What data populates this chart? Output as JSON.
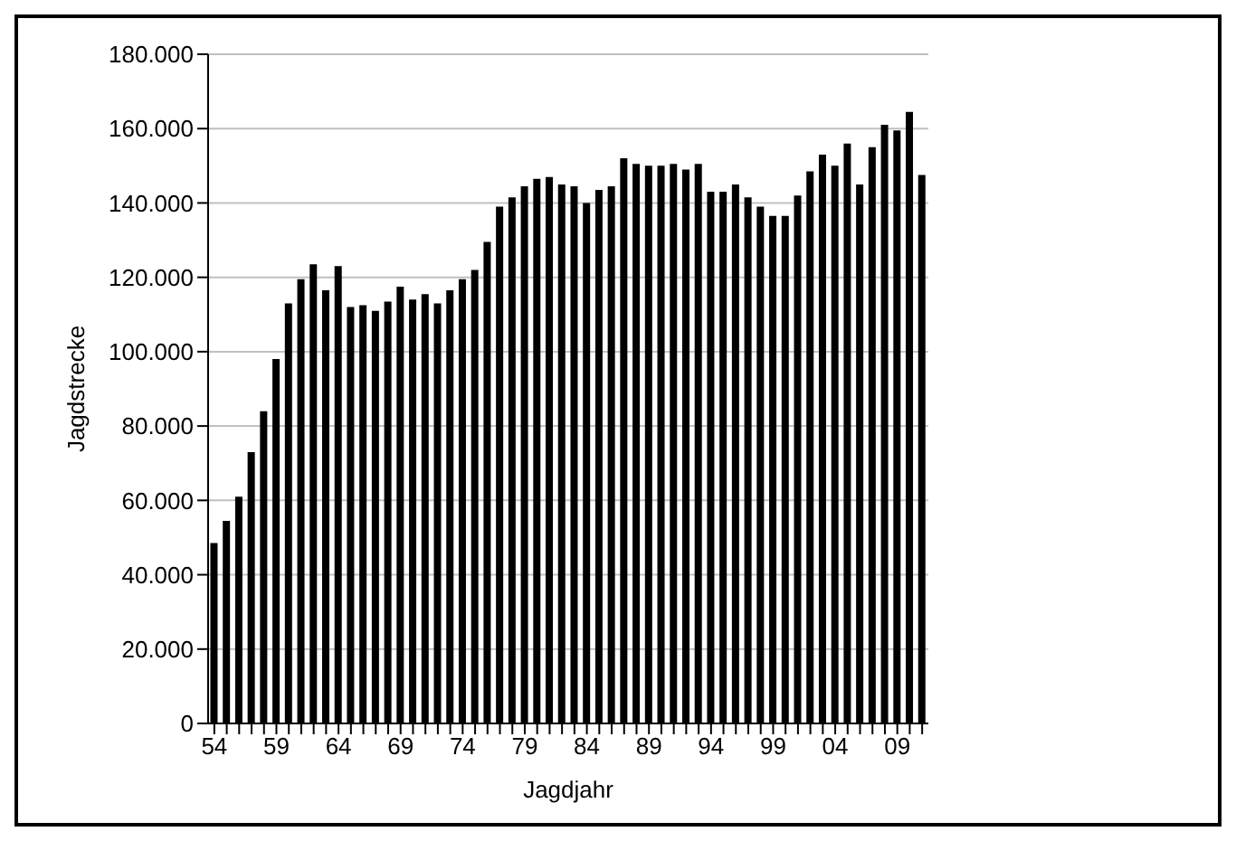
{
  "chart_data": {
    "type": "bar",
    "xlabel": "Jagdjahr",
    "ylabel": "Jagdstrecke",
    "categories": [
      "54",
      null,
      null,
      null,
      null,
      "59",
      null,
      null,
      null,
      null,
      "64",
      null,
      null,
      null,
      null,
      "69",
      null,
      null,
      null,
      null,
      "74",
      null,
      null,
      null,
      null,
      "79",
      null,
      null,
      null,
      null,
      "84",
      null,
      null,
      null,
      null,
      "89",
      null,
      null,
      null,
      null,
      "94",
      null,
      null,
      null,
      null,
      "99",
      null,
      null,
      null,
      null,
      "04",
      null,
      null,
      null,
      null,
      "09",
      null,
      null
    ],
    "values": [
      48500,
      54500,
      61000,
      73000,
      84000,
      98000,
      113000,
      119500,
      123500,
      116500,
      123000,
      112000,
      112500,
      111000,
      113500,
      117500,
      114000,
      115500,
      113000,
      116500,
      119500,
      122000,
      129500,
      139000,
      141500,
      144500,
      146500,
      147000,
      145000,
      144500,
      140000,
      143500,
      144500,
      152000,
      150500,
      150000,
      150000,
      150500,
      149000,
      150500,
      143000,
      143000,
      145000,
      141500,
      139000,
      136500,
      136500,
      142000,
      148500,
      153000,
      150000,
      156000,
      145000,
      155000,
      161000,
      159500,
      164500,
      147500
    ],
    "color": "#000000",
    "ylim": [
      0,
      180000
    ],
    "yticks": [
      {
        "value": 0,
        "label": "0"
      },
      {
        "value": 20000,
        "label": "20.000"
      },
      {
        "value": 40000,
        "label": "40.000"
      },
      {
        "value": 60000,
        "label": "60.000"
      },
      {
        "value": 80000,
        "label": "80.000"
      },
      {
        "value": 100000,
        "label": "100.000"
      },
      {
        "value": 120000,
        "label": "120.000"
      },
      {
        "value": 140000,
        "label": "140.000"
      },
      {
        "value": 160000,
        "label": "160.000"
      },
      {
        "value": 180000,
        "label": "180.000"
      }
    ],
    "grid": "y"
  }
}
